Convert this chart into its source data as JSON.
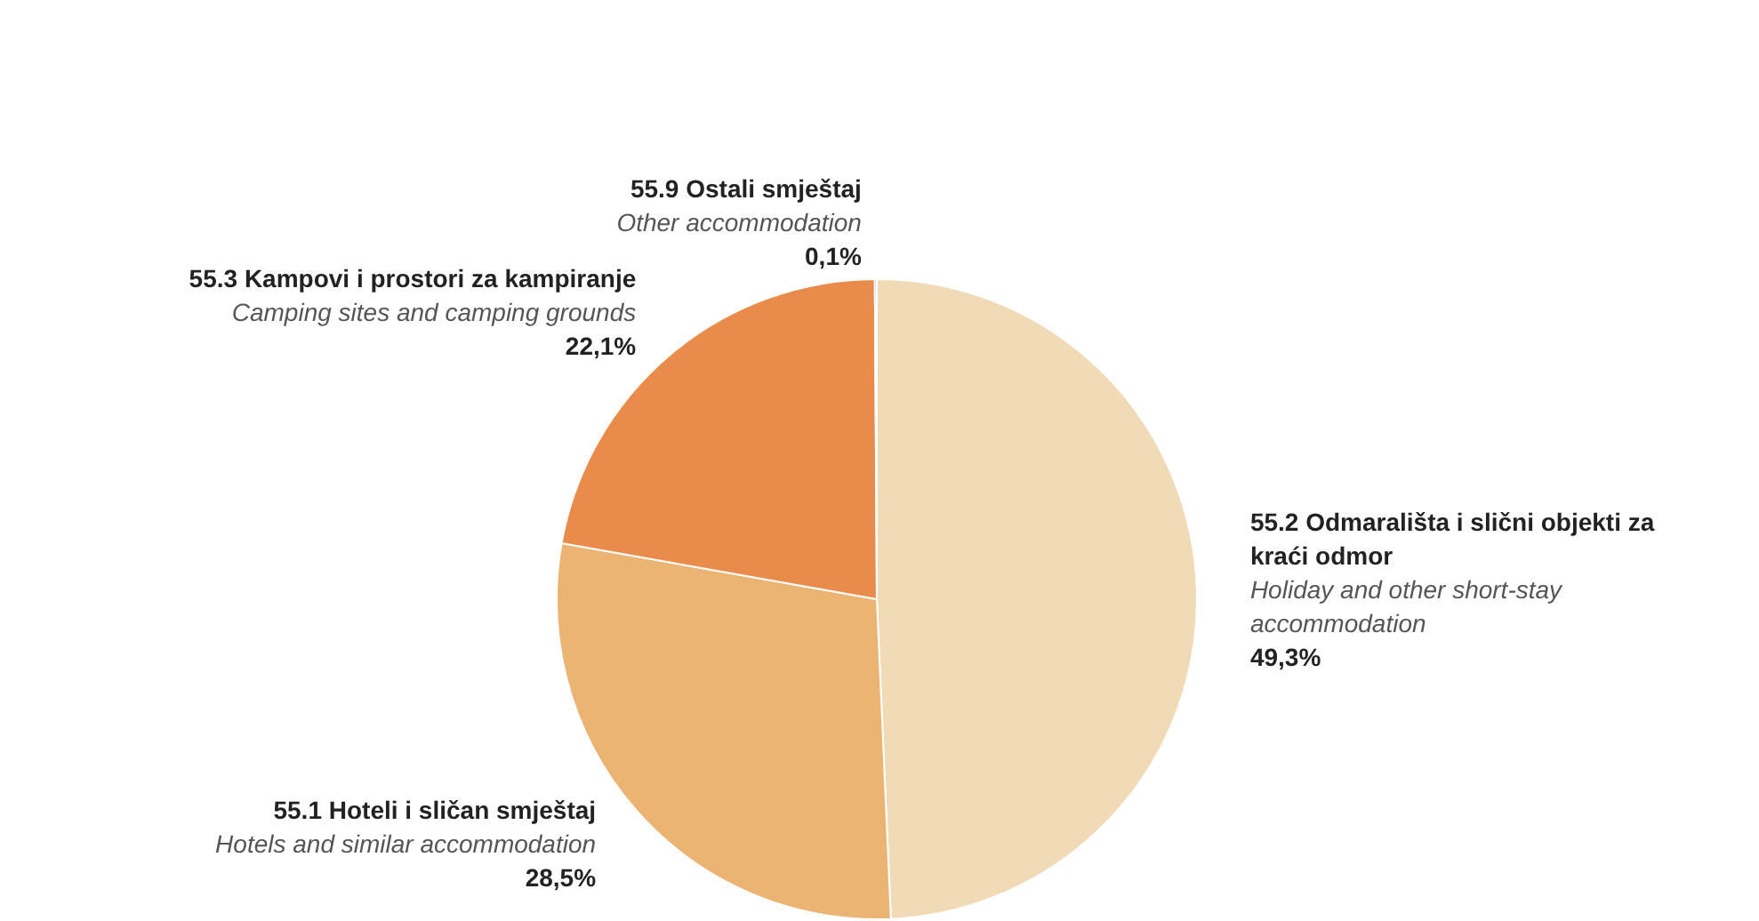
{
  "chart_data": {
    "type": "pie",
    "categories": [
      "55.2 Odmarališta i slični objekti za kraći odmor",
      "55.1 Hoteli i sličan smještaj",
      "55.3 Kampovi i prostori za kampiranje",
      "55.9 Ostali smještaj"
    ],
    "values": [
      49.3,
      28.5,
      22.1,
      0.1
    ],
    "colors": [
      "#f1dab6",
      "#ebb472",
      "#e98b4a",
      "#4f8a86"
    ],
    "value_labels": [
      "49,3%",
      "28,5%",
      "22,1%",
      "0,1%"
    ],
    "annotations": [
      "Holiday and other short-stay accommodation",
      "Hotels and similar accommodation",
      "Camping sites and camping grounds",
      "Other accommodation"
    ]
  }
}
